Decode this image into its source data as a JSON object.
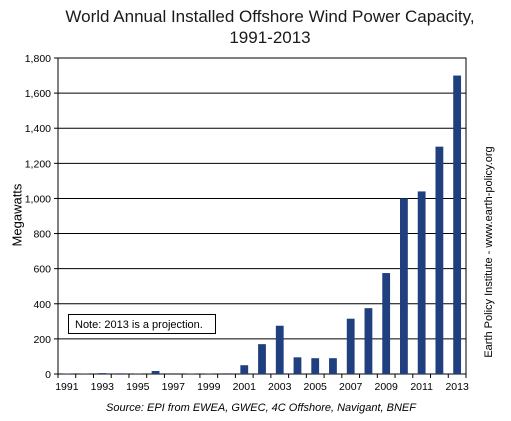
{
  "chart_data": {
    "type": "bar",
    "title": "World Annual Installed Offshore Wind Power Capacity, 1991-2013",
    "title_lines": [
      "World Annual Installed Offshore Wind Power Capacity,",
      "1991-2013"
    ],
    "ylabel": "Megawatts",
    "xlabel": "",
    "ylim": [
      0,
      1800
    ],
    "y_ticks": [
      0,
      200,
      400,
      600,
      800,
      1000,
      1200,
      1400,
      1600,
      1800
    ],
    "y_tick_labels": [
      "0",
      "200",
      "400",
      "600",
      "800",
      "1,000",
      "1,200",
      "1,400",
      "1,600",
      "1,800"
    ],
    "categories": [
      "1991",
      "1992",
      "1993",
      "1994",
      "1995",
      "1996",
      "1997",
      "1998",
      "1999",
      "2000",
      "2001",
      "2002",
      "2003",
      "2004",
      "2005",
      "2006",
      "2007",
      "2008",
      "2009",
      "2010",
      "2011",
      "2012",
      "2013"
    ],
    "x_tick_labels": [
      "1991",
      "1993",
      "1995",
      "1997",
      "1999",
      "2001",
      "2003",
      "2005",
      "2007",
      "2009",
      "2011",
      "2013"
    ],
    "values": [
      3,
      2,
      5,
      4,
      2,
      17,
      0,
      2,
      2,
      4,
      50,
      170,
      275,
      95,
      90,
      90,
      315,
      375,
      575,
      1000,
      1040,
      1295,
      1700
    ],
    "grid": true,
    "bar_color": "#1f3f7f",
    "note": "Note: 2013 is a projection.",
    "source": "Source: EPI from EWEA, GWEC, 4C Offshore, Navigant, BNEF",
    "side_label": "Earth Policy Institute - www.earth-policy.org"
  }
}
